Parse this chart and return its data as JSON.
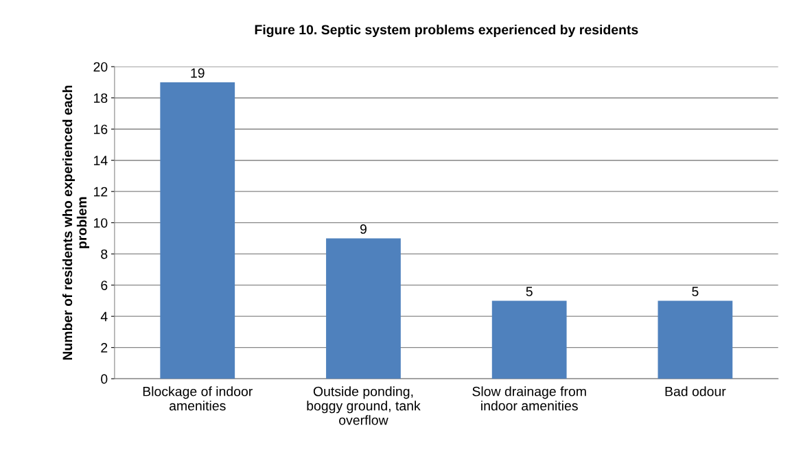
{
  "chart_data": {
    "type": "bar",
    "title": "Figure 10. Septic system problems experienced by residents",
    "ylabel": "Number of residents who experienced each\nproblem",
    "categories": [
      "Blockage of indoor\namenities",
      "Outside ponding,\nboggy ground, tank\noverflow",
      "Slow drainage from\nindoor amenities",
      "Bad odour"
    ],
    "values": [
      19,
      9,
      5,
      5
    ],
    "color": "#4f81bd",
    "ylim": [
      0,
      20
    ],
    "yticks": [
      0,
      2,
      4,
      6,
      8,
      10,
      12,
      14,
      16,
      18,
      20
    ],
    "grid": "y",
    "data_labels": true
  }
}
